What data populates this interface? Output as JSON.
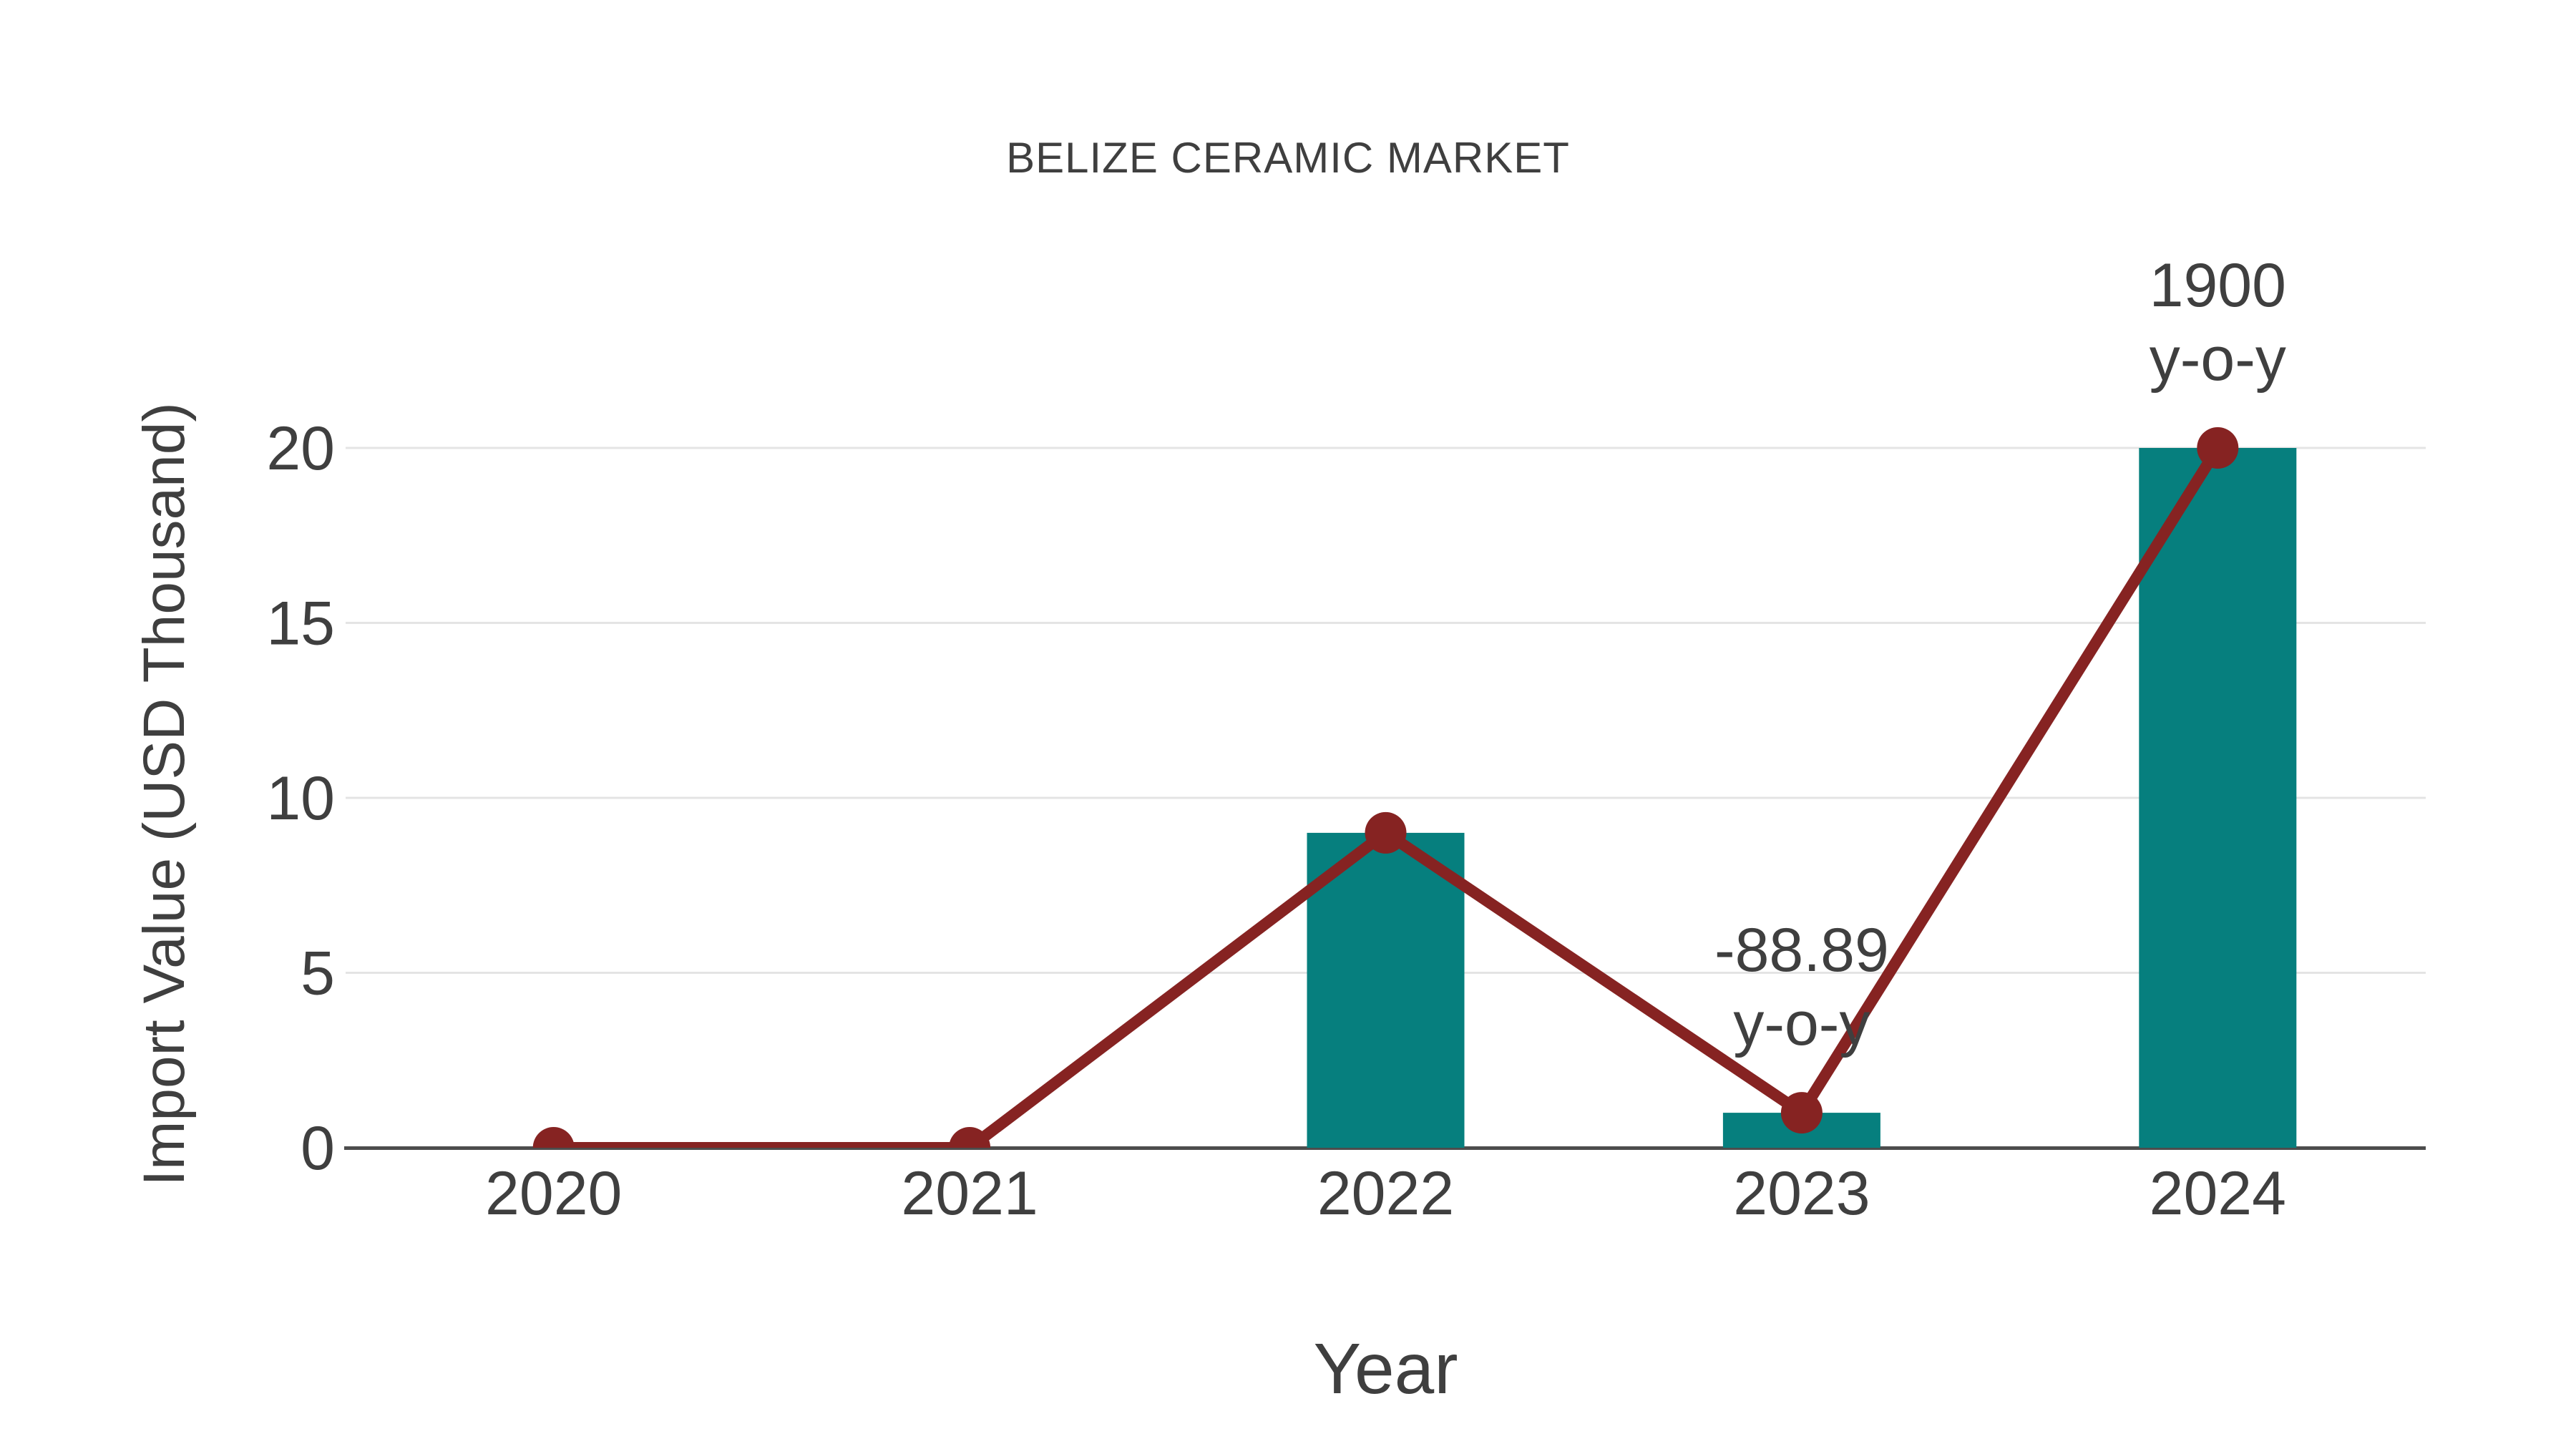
{
  "chart_data": {
    "type": "bar",
    "subtype": "bar+line combo",
    "title": "BELIZE CERAMIC MARKET",
    "xlabel": "Year",
    "ylabel": "Import Value (USD Thousand)",
    "categories": [
      "2020",
      "2021",
      "2022",
      "2023",
      "2024"
    ],
    "series": [
      {
        "name": "import-value-bars",
        "type": "bar",
        "values": [
          0,
          0,
          9,
          1,
          20
        ]
      },
      {
        "name": "import-value-line",
        "type": "line",
        "values": [
          0,
          0,
          9,
          1,
          20
        ]
      }
    ],
    "y_ticks": [
      0,
      5,
      10,
      15,
      20
    ],
    "ylim": [
      0,
      20
    ],
    "grid": "horizontal",
    "legend": "none",
    "annotations": [
      {
        "category": "2023",
        "value": 1,
        "lines": [
          "-88.89",
          "y-o-y"
        ]
      },
      {
        "category": "2024",
        "value": 20,
        "lines": [
          "1900",
          "y-o-y"
        ]
      }
    ],
    "colors": {
      "bar": "#067f7e",
      "line": "#862322",
      "marker": "#862322",
      "axis_line": "#4d4d4d",
      "gridline": "#e4e4e4",
      "text": "#3f3f3f",
      "background": "#ffffff"
    }
  }
}
